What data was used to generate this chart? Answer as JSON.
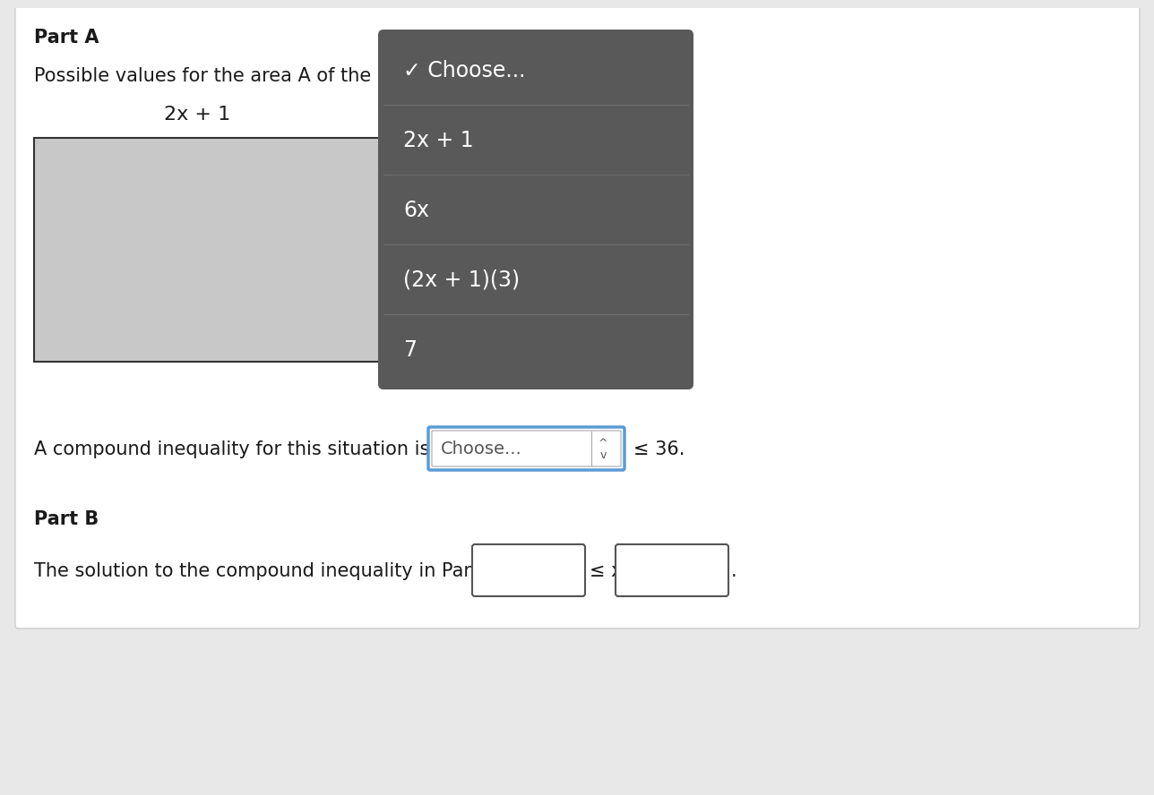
{
  "bg_color": "#e8e8e8",
  "panel_bg": "#ffffff",
  "part_a_label": "Part A",
  "part_b_label": "Part B",
  "possible_text": "Possible values for the area A of the rec",
  "rect_label": "2x + 1",
  "dropdown_menu": {
    "bg_color": "#595959",
    "divider_color": "#6e6e6e",
    "text_color": "#ffffff",
    "items": [
      "✓ Choose...",
      "2x + 1",
      "6x",
      "(2x + 1)(3)",
      "7"
    ]
  },
  "compound_text_before": "A compound inequality for this situation is 12 ≤",
  "compound_text_after": "≤ 36.",
  "choose_box_text": "Choose...",
  "choose_box_border": "#5b9bd5",
  "part_b_text": "The solution to the compound inequality in Part A is",
  "leq_text": "≤ x ≤",
  "period": ".",
  "text_color": "#1a1a1a",
  "input_border_color": "#555555"
}
